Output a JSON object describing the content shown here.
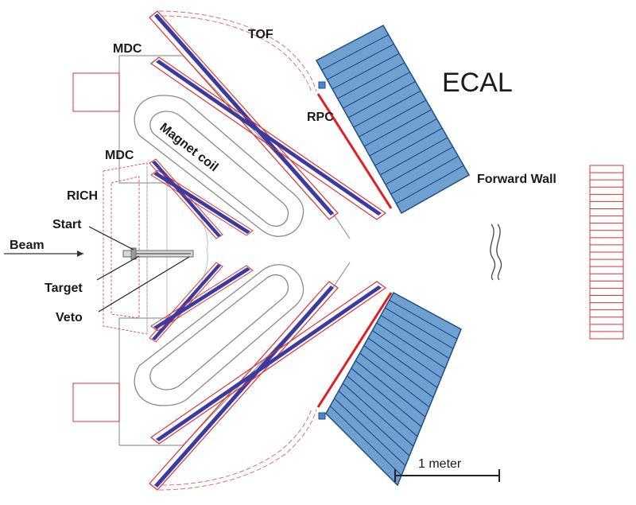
{
  "labels": {
    "tof": "TOF",
    "mdc_outer": "MDC",
    "mdc_inner": "MDC",
    "ecal": "ECAL",
    "rpc": "RPC",
    "magnet_coil": "Magnet coil",
    "forward_wall": "Forward Wall",
    "rich": "RICH",
    "start": "Start",
    "beam": "Beam",
    "target": "Target",
    "veto": "Veto",
    "scale": "1 meter"
  },
  "colors": {
    "outline_red": "#e03030",
    "mdc_blue": "#3a3aa0",
    "ecal_fill": "#6fa0d0",
    "ecal_edge": "#1f4f8a",
    "coil_gray": "#8a8a8a",
    "rpc_red": "#e02020"
  }
}
